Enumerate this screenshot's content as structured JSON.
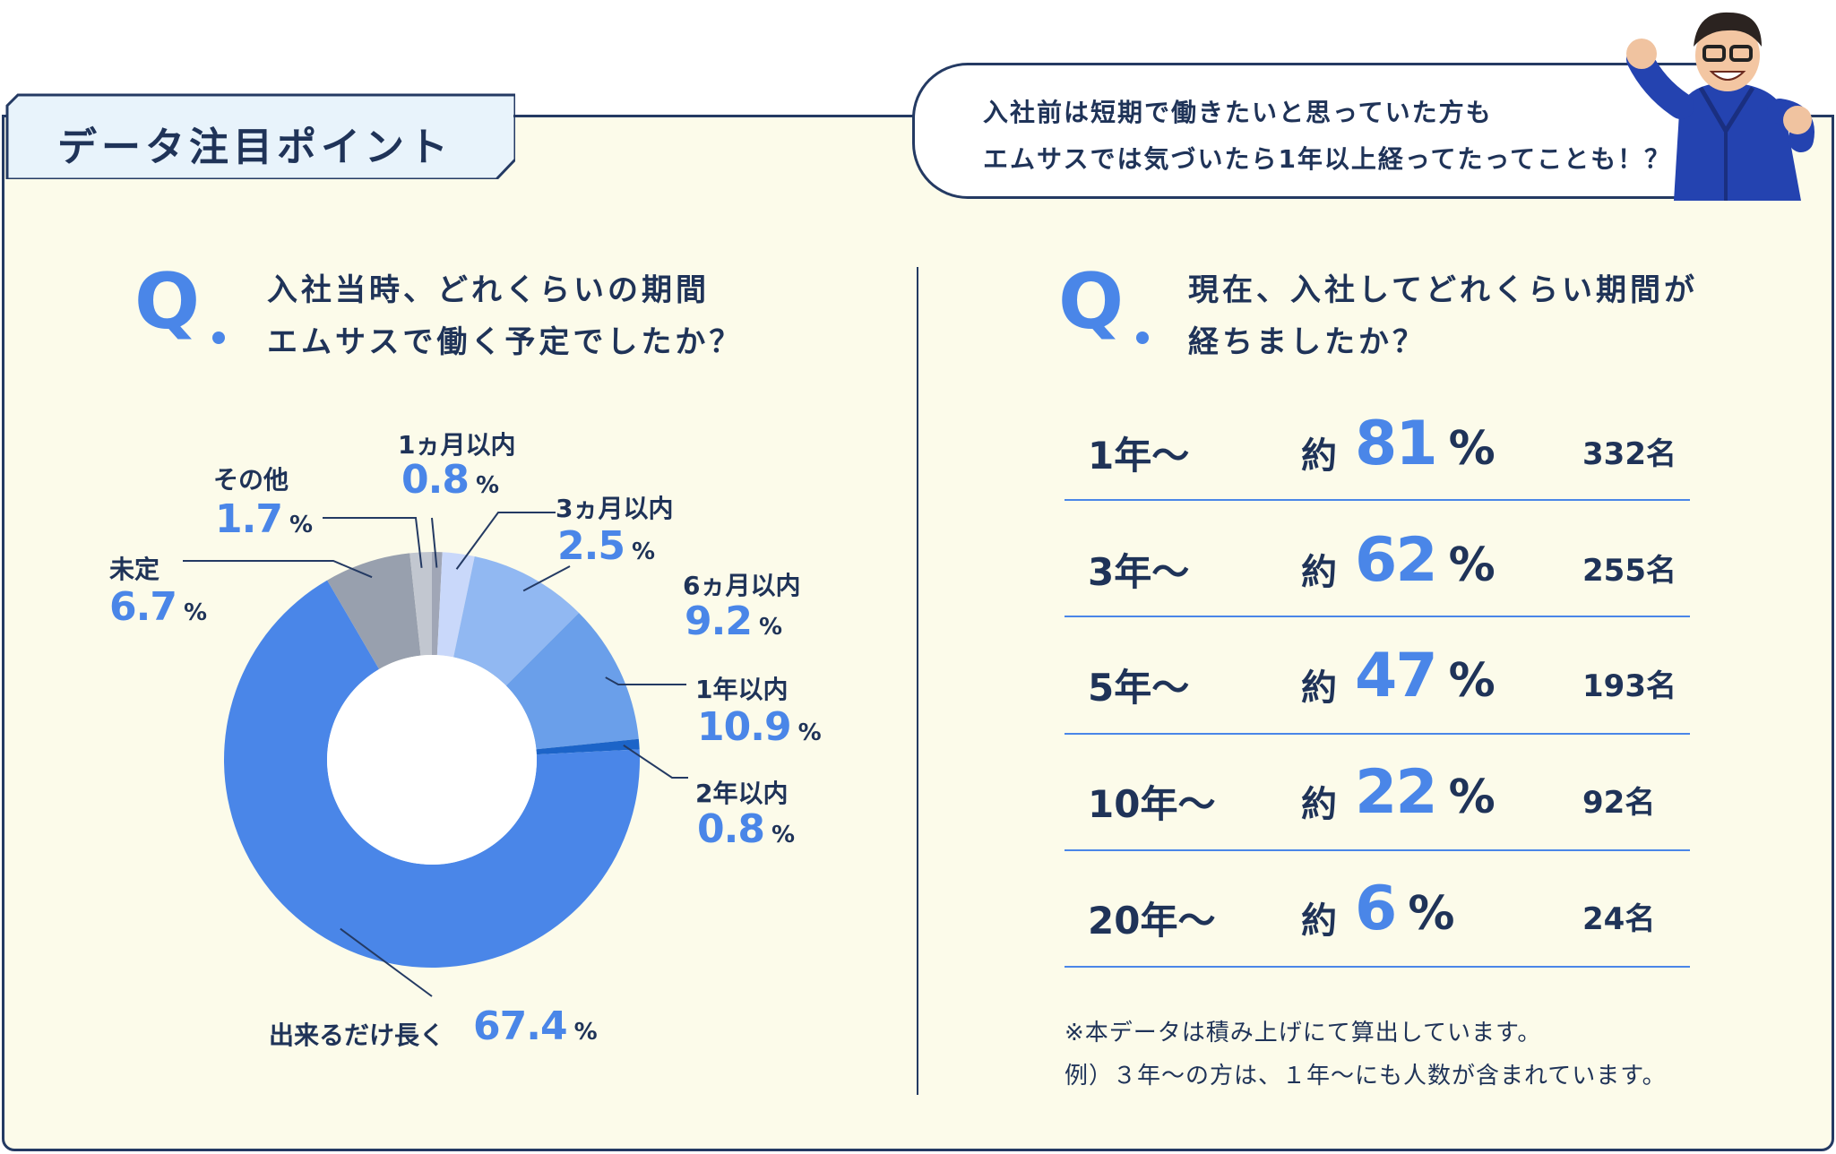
{
  "heading": "データ注目ポイント",
  "bubble": {
    "line1": "入社前は短期で働きたいと思っていた方も",
    "line2": "エムサスでは気づいたら1年以上経ってたってことも！？"
  },
  "left": {
    "q_mark": "Q",
    "question_line1": "入社当時、どれくらいの期間",
    "question_line2": "エムサスで働く予定でしたか？"
  },
  "right": {
    "q_mark": "Q",
    "question_line1": "現在、入社してどれくらい期間が",
    "question_line2": "経ちましたか？",
    "yaku": "約",
    "pct_unit": "%",
    "rows": [
      {
        "label": "1年～",
        "value": "81",
        "count": "332名"
      },
      {
        "label": "3年～",
        "value": "62",
        "count": "255名"
      },
      {
        "label": "5年～",
        "value": "47",
        "count": "193名"
      },
      {
        "label": "10年～",
        "value": "22",
        "count": "92名"
      },
      {
        "label": "20年～",
        "value": "6",
        "count": "24名"
      }
    ],
    "note_line1": "※本データは積み上げにて算出しています。",
    "note_line2": "例）３年～の方は、１年～にも人数が含まれています。"
  },
  "chart_data": [
    {
      "type": "pie",
      "title": "入社当時、どれくらいの期間エムサスで働く予定でしたか？",
      "unit": "%",
      "categories": [
        "1ヵ月以内",
        "3ヵ月以内",
        "6ヵ月以内",
        "1年以内",
        "2年以内",
        "出来るだけ長く",
        "未定",
        "その他"
      ],
      "values": [
        0.8,
        2.5,
        9.2,
        10.9,
        0.8,
        67.4,
        6.7,
        1.7
      ],
      "labels": {
        "m1": {
          "name": "1ヵ月以内",
          "value": "0.8"
        },
        "m3": {
          "name": "3ヵ月以内",
          "value": "2.5"
        },
        "m6": {
          "name": "6ヵ月以内",
          "value": "9.2"
        },
        "y1": {
          "name": "1年以内",
          "value": "10.9"
        },
        "y2": {
          "name": "2年以内",
          "value": "0.8"
        },
        "long": {
          "name": "出来るだけ長く",
          "value": "67.4"
        },
        "undecided": {
          "name": "未定",
          "value": "6.7"
        },
        "other": {
          "name": "その他",
          "value": "1.7"
        }
      },
      "colors": [
        "#a0a6b6",
        "#c9d8fa",
        "#91b8f2",
        "#6a9fea",
        "#1c64c8",
        "#4a86e8",
        "#98a0ae",
        "#c2c7d0"
      ]
    },
    {
      "type": "table",
      "title": "現在、入社してどれくらい期間が経ちましたか？",
      "categories": [
        "1年～",
        "3年～",
        "5年～",
        "10年～",
        "20年～"
      ],
      "series": [
        {
          "name": "%",
          "values": [
            81,
            62,
            47,
            22,
            6
          ]
        },
        {
          "name": "名",
          "values": [
            332,
            255,
            193,
            92,
            24
          ]
        }
      ]
    }
  ]
}
